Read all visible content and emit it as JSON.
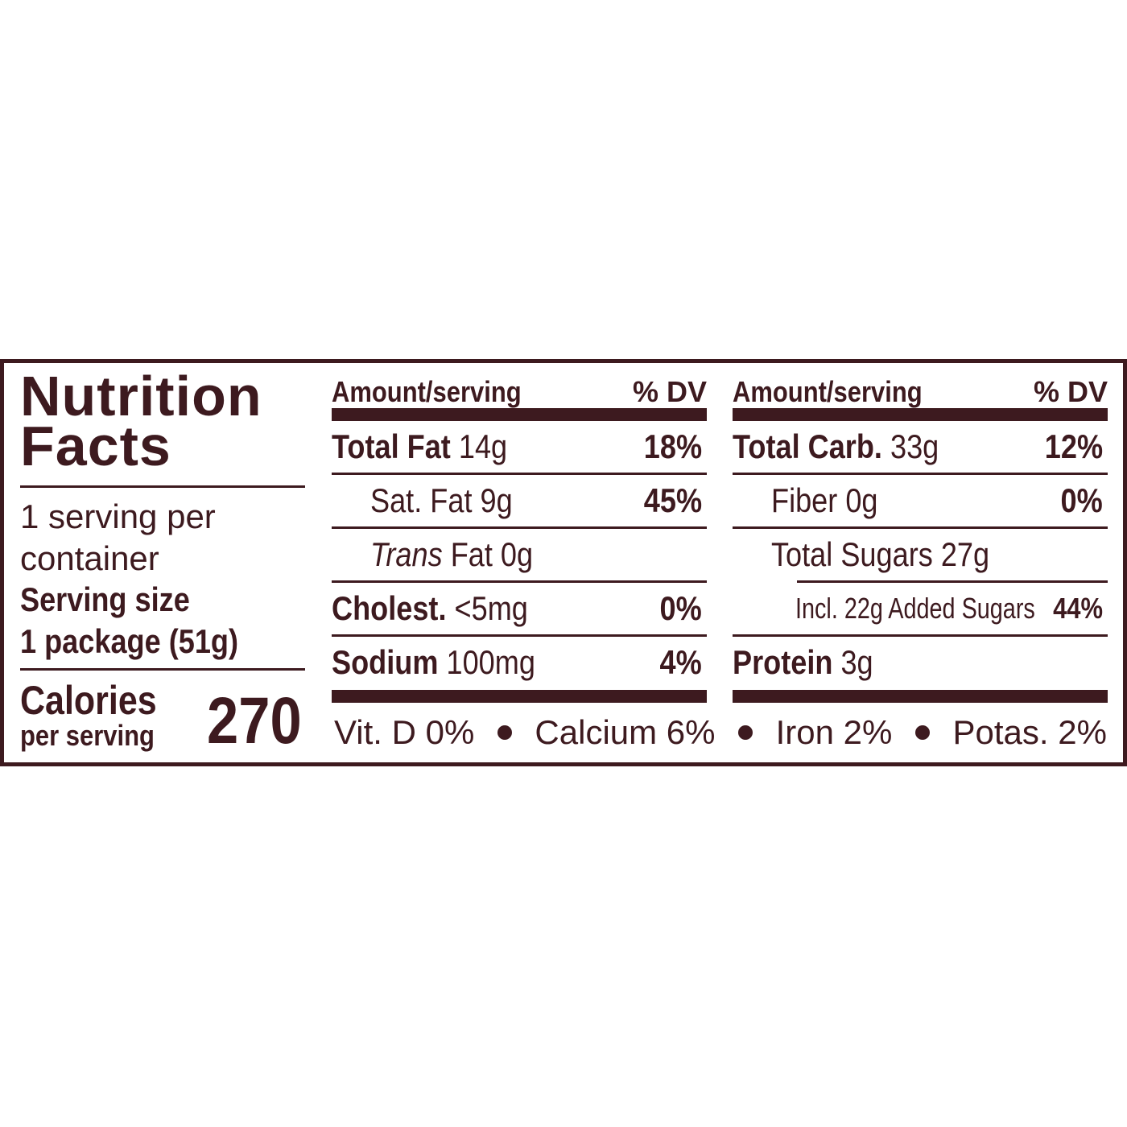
{
  "colors": {
    "ink": "#3d1a1f",
    "background": "#ffffff"
  },
  "title_line1": "Nutrition",
  "title_line2": "Facts",
  "servings_line1": "1 serving per",
  "servings_line2": "container",
  "serving_size_label": "Serving size",
  "serving_size_value": "1 package (51g)",
  "calories_label": "Calories",
  "calories_sub": "per serving",
  "calories_value": "270",
  "middle": {
    "header_left": "Amount/serving",
    "header_right": "% DV",
    "rows": [
      {
        "name": "Total Fat",
        "amount": "14g",
        "dv": "18%"
      },
      {
        "name": "Sat. Fat",
        "amount": "9g",
        "dv": "45%"
      },
      {
        "name_italic": "Trans",
        "name": "Fat",
        "amount": "0g",
        "dv": ""
      },
      {
        "name": "Cholest.",
        "amount": "<5mg",
        "dv": "0%"
      },
      {
        "name": "Sodium",
        "amount": "100mg",
        "dv": "4%"
      }
    ]
  },
  "right": {
    "header_left": "Amount/serving",
    "header_right": "% DV",
    "rows": [
      {
        "name": "Total Carb.",
        "amount": "33g",
        "dv": "12%"
      },
      {
        "name": "Fiber",
        "amount": "0g",
        "dv": "0%"
      },
      {
        "name": "Total Sugars",
        "amount": "27g",
        "dv": ""
      },
      {
        "name": "Incl. 22g Added Sugars",
        "amount": "",
        "dv": "44%"
      },
      {
        "name": "Protein",
        "amount": "3g",
        "dv": ""
      }
    ]
  },
  "footer": [
    "Vit. D 0%",
    "Calcium 6%",
    "Iron 2%",
    "Potas. 2%"
  ]
}
